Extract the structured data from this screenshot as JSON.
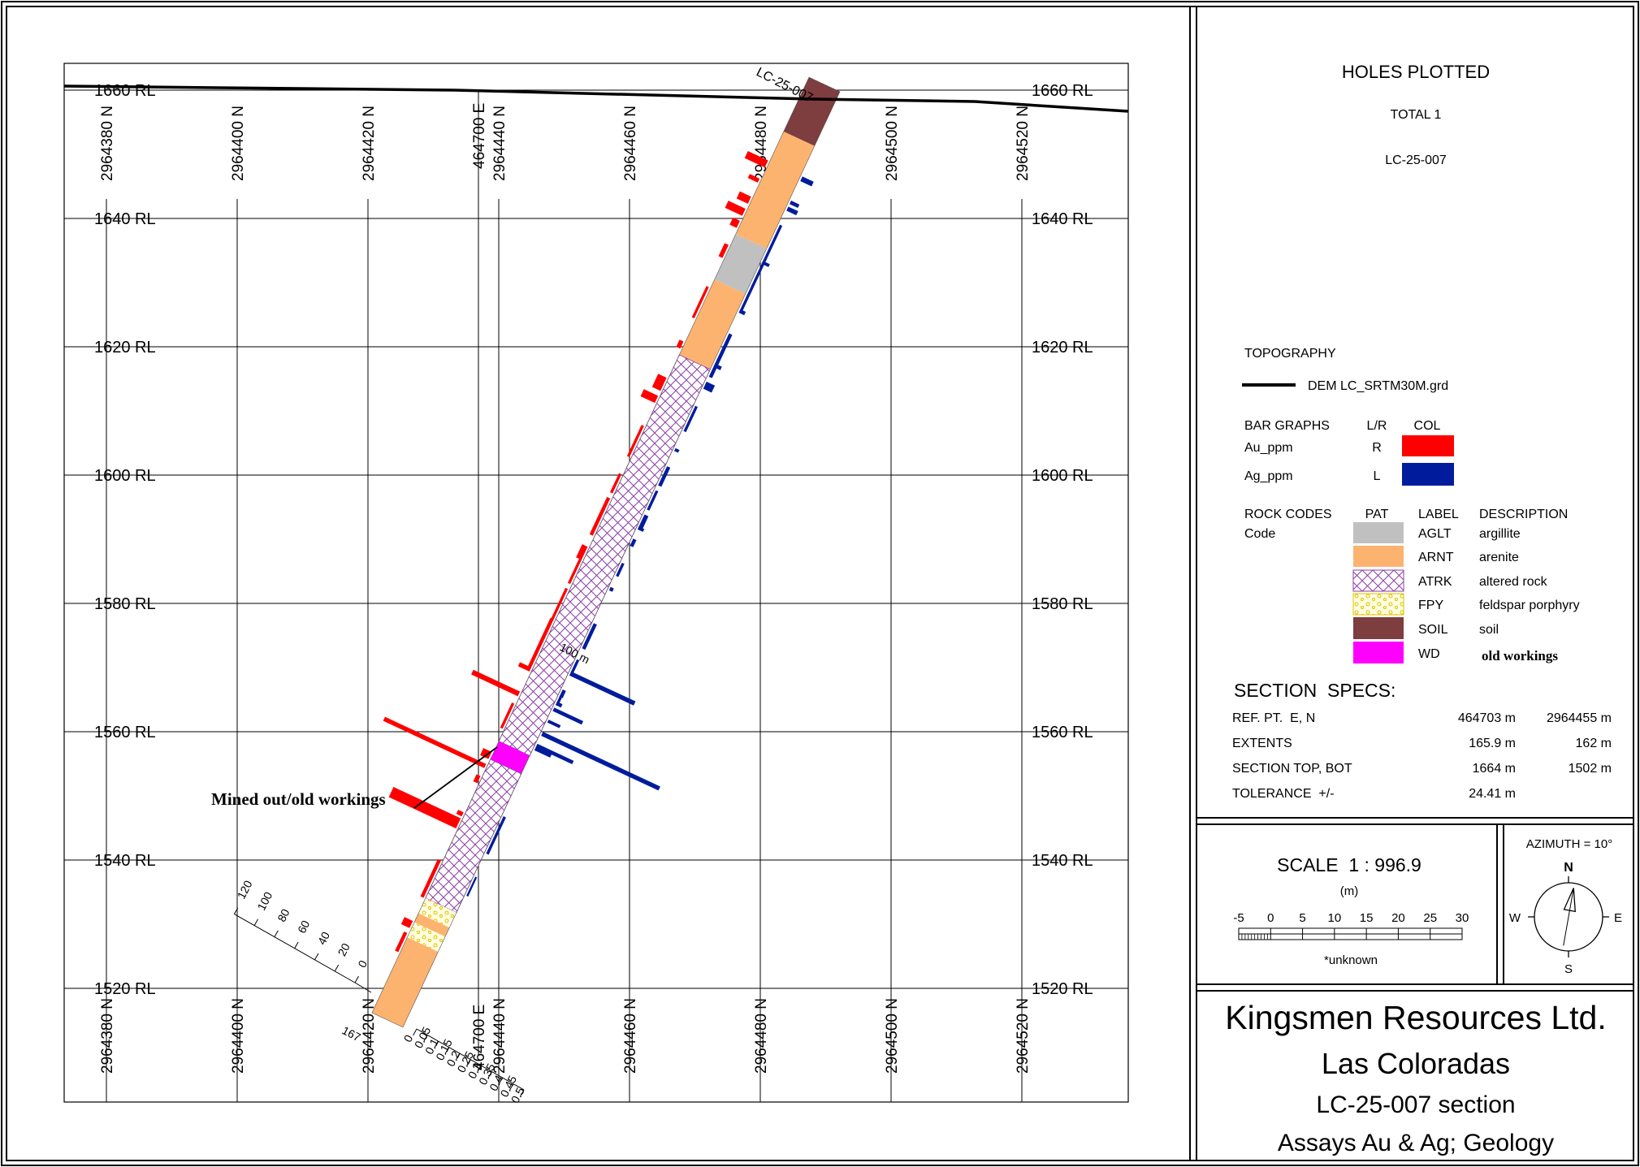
{
  "section": {
    "rl_labels": [
      "1660 RL",
      "1640 RL",
      "1620 RL",
      "1600 RL",
      "1580 RL",
      "1560 RL",
      "1540 RL",
      "1520 RL"
    ],
    "rl_values": [
      1660,
      1640,
      1620,
      1600,
      1580,
      1560,
      1540,
      1520
    ],
    "northing_labels": [
      "2964380 N",
      "2964400 N",
      "2964420 N",
      "2964440 N",
      "2964460 N",
      "2964480 N",
      "2964500 N",
      "2964520 N"
    ],
    "easting_label": "464700 E",
    "hole_label": "LC-25-007",
    "depth_marker": "100 m",
    "annotation": "Mined out/old workings",
    "ag_scale_ticks": [
      "0",
      "20",
      "40",
      "60",
      "80",
      "100",
      "120"
    ],
    "ag_scale_label": "167",
    "au_scale_ticks": [
      "0",
      "0.05",
      "0.1",
      "0.15",
      "0.2",
      "0.25",
      "0.3",
      "0.35",
      "0.4",
      "0.45",
      "0.5"
    ],
    "lithology": [
      {
        "code": "SOIL",
        "from_m": 0,
        "to_m": 9
      },
      {
        "code": "ARNT",
        "from_m": 9,
        "to_m": 26
      },
      {
        "code": "AGLT",
        "from_m": 26,
        "to_m": 33.5
      },
      {
        "code": "ARNT",
        "from_m": 33.5,
        "to_m": 46
      },
      {
        "code": "ATRK",
        "from_m": 46,
        "to_m": 110
      },
      {
        "code": "WD",
        "from_m": 110,
        "to_m": 113
      },
      {
        "code": "ATRK",
        "from_m": 113,
        "to_m": 136
      },
      {
        "code": "FPY",
        "from_m": 136,
        "to_m": 138.5
      },
      {
        "code": "ARNT",
        "from_m": 138.5,
        "to_m": 140
      },
      {
        "code": "FPY",
        "from_m": 140,
        "to_m": 142.5
      },
      {
        "code": "ARNT",
        "from_m": 142.5,
        "to_m": 155
      }
    ]
  },
  "legend": {
    "holes_title": "HOLES PLOTTED",
    "holes_total": "TOTAL 1",
    "hole_id": "LC-25-007",
    "topo_title": "TOPOGRAPHY",
    "topo_entry": "DEM LC_SRTM30M.grd",
    "bar_header": {
      "name": "BAR GRAPHS",
      "side": "L/R",
      "col": "COL"
    },
    "bars": [
      {
        "name": "Au_ppm",
        "side": "R",
        "color": "#ff0000"
      },
      {
        "name": "Ag_ppm",
        "side": "L",
        "color": "#001c9c"
      }
    ],
    "rock_header": {
      "title": "ROCK CODES",
      "code": "Code",
      "pat": "PAT",
      "label": "LABEL",
      "desc": "DESCRIPTION"
    },
    "rocks": [
      {
        "label": "AGLT",
        "desc": "argillite",
        "color": "#c0c0c0"
      },
      {
        "label": "ARNT",
        "desc": "arenite",
        "color": "#fdb370"
      },
      {
        "label": "ATRK",
        "desc": "altered rock",
        "color": "#8a3fa8"
      },
      {
        "label": "FPY",
        "desc": "feldspar porphyry",
        "color": "#ffff80"
      },
      {
        "label": "SOIL",
        "desc": "soil",
        "color": "#7e3d3e"
      },
      {
        "label": "WD",
        "desc": "old workings",
        "color": "#ff00ff"
      }
    ]
  },
  "specs": {
    "title": "SECTION  SPECS:",
    "rows": [
      {
        "label": "REF. PT.  E, N",
        "v1": "464703 m",
        "v2": "2964455 m"
      },
      {
        "label": "EXTENTS",
        "v1": "165.9 m",
        "v2": "162 m"
      },
      {
        "label": "SECTION TOP, BOT",
        "v1": "1664 m",
        "v2": "1502 m"
      },
      {
        "label": "TOLERANCE  +/-",
        "v1": "24.41 m",
        "v2": ""
      }
    ]
  },
  "scale": {
    "title": "SCALE  1 : 996.9",
    "unit": "(m)",
    "ticks": [
      "-5",
      "0",
      "5",
      "10",
      "15",
      "20",
      "25",
      "30"
    ],
    "note": "*unknown"
  },
  "compass": {
    "azimuth": "AZIMUTH = 10°",
    "n": "N",
    "s": "S",
    "e": "E",
    "w": "W"
  },
  "title_block": {
    "company": "Kingsmen Resources Ltd.",
    "project": "Las Coloradas",
    "section": "LC-25-007 section",
    "subject": "Assays Au & Ag; Geology"
  }
}
